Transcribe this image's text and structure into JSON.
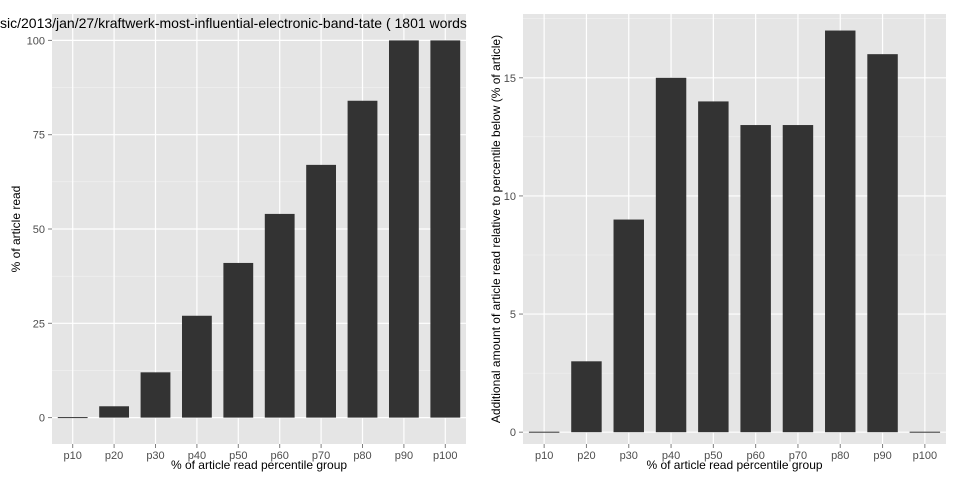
{
  "chart_data": [
    {
      "type": "bar",
      "title": "sic/2013/jan/27/kraftwerk-most-influential-electronic-band-tate ( 1801 words",
      "xlabel": "% of article read percentile group",
      "ylabel": "% of article read",
      "categories": [
        "p10",
        "p20",
        "p30",
        "p40",
        "p50",
        "p60",
        "p70",
        "p80",
        "p90",
        "p100"
      ],
      "values": [
        0,
        3,
        12,
        27,
        41,
        54,
        67,
        84,
        100,
        100
      ],
      "ylim": [
        -7,
        107
      ],
      "yticks": [
        0,
        25,
        50,
        75,
        100
      ],
      "grid": true
    },
    {
      "type": "bar",
      "title": "",
      "xlabel": "% of article read percentile group",
      "ylabel": "Additional amount of article read relative to percentile below (% of article)",
      "categories": [
        "p10",
        "p20",
        "p30",
        "p40",
        "p50",
        "p60",
        "p70",
        "p80",
        "p90",
        "p100"
      ],
      "values": [
        0,
        3,
        9,
        15,
        14,
        13,
        13,
        17,
        16,
        0
      ],
      "ylim": [
        -0.5,
        17.7
      ],
      "yticks": [
        0,
        5,
        10,
        15
      ],
      "grid": true
    }
  ],
  "colors": {
    "panel_bg": "#e5e5e5",
    "grid_major": "#ffffff",
    "grid_minor": "#f2f2f2",
    "bar": "#333333",
    "tick_text": "#4d4d4d",
    "tick_mark": "#7f7f7f"
  }
}
